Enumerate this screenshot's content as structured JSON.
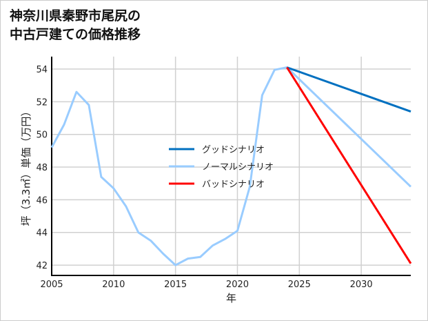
{
  "title_lines": [
    "神奈川県秦野市尾尻の",
    "中古戸建ての価格推移"
  ],
  "chart_data": {
    "type": "line",
    "title": "神奈川県秦野市尾尻の中古戸建ての価格推移",
    "xlabel": "年",
    "ylabel": "坪（3.3㎡）単価（万円）",
    "xlim": [
      2005,
      2034
    ],
    "ylim": [
      41.37,
      54.76
    ],
    "xticks": [
      2005,
      2010,
      2015,
      2020,
      2025,
      2030
    ],
    "yticks": [
      42,
      44,
      46,
      48,
      50,
      52,
      54
    ],
    "grid": true,
    "legend_position": "center",
    "series": [
      {
        "name": "グッドシナリオ",
        "color": "#0070C0",
        "x": [
          2024,
          2034
        ],
        "y": [
          54.1,
          51.4
        ]
      },
      {
        "name": "ノーマルシナリオ",
        "color": "#99CCFF",
        "x": [
          2005,
          2006,
          2007,
          2008,
          2009,
          2010,
          2011,
          2012,
          2013,
          2014,
          2015,
          2016,
          2017,
          2018,
          2019,
          2020,
          2021,
          2022,
          2023,
          2024,
          2034
        ],
        "y": [
          49.2,
          50.6,
          52.6,
          51.8,
          47.4,
          46.7,
          45.6,
          44.0,
          43.5,
          42.7,
          42.0,
          42.4,
          42.5,
          43.2,
          43.6,
          44.1,
          46.8,
          52.4,
          53.95,
          54.1,
          46.8
        ]
      },
      {
        "name": "バッドシナリオ",
        "color": "#FF0000",
        "x": [
          2024,
          2034
        ],
        "y": [
          54.1,
          42.1
        ]
      }
    ]
  }
}
